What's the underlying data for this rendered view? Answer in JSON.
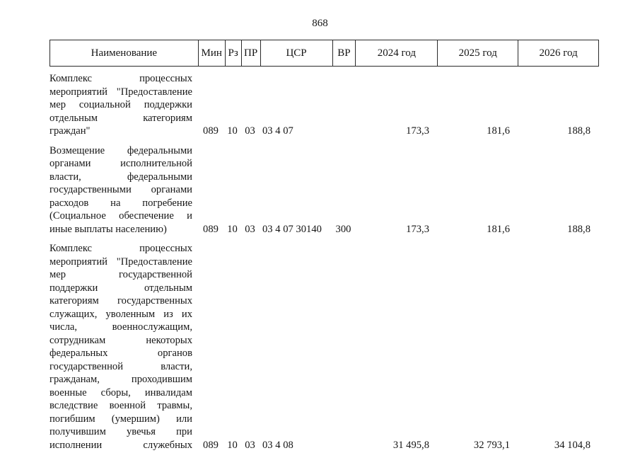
{
  "page": {
    "number": "868"
  },
  "table": {
    "headers": [
      "Наименование",
      "Мин",
      "Рз",
      "ПР",
      "ЦСР",
      "ВР",
      "2024 год",
      "2025 год",
      "2026 год"
    ],
    "rows": [
      {
        "name": "Комплекс процессных мероприятий \"Предоставление мер социальной поддержки отдельным категориям граждан\"",
        "min": "089",
        "rz": "10",
        "pr": "03",
        "csr": "03 4 07",
        "vr": "",
        "y2024": "173,3",
        "y2025": "181,6",
        "y2026": "188,8"
      },
      {
        "name": "Возмещение федеральными органами исполнительной власти, федеральными государственными органами расходов на погребение (Социальное обеспечение и иные выплаты населению)",
        "min": "089",
        "rz": "10",
        "pr": "03",
        "csr": "03 4 07 30140",
        "vr": "300",
        "y2024": "173,3",
        "y2025": "181,6",
        "y2026": "188,8"
      },
      {
        "name": "Комплекс процессных мероприятий \"Предоставление мер государственной поддержки отдельным категориям государственных служащих, уволенным из их числа, военнослужащим, сотрудникам некоторых федеральных органов государственной власти, гражданам, проходившим военные сборы, инвалидам вследствие военной травмы, погибшим (умершим) или получившим увечья при исполнении служебных",
        "min": "089",
        "rz": "10",
        "pr": "03",
        "csr": "03 4 08",
        "vr": "",
        "y2024": "31 495,8",
        "y2025": "32 793,1",
        "y2026": "34 104,8"
      }
    ]
  }
}
